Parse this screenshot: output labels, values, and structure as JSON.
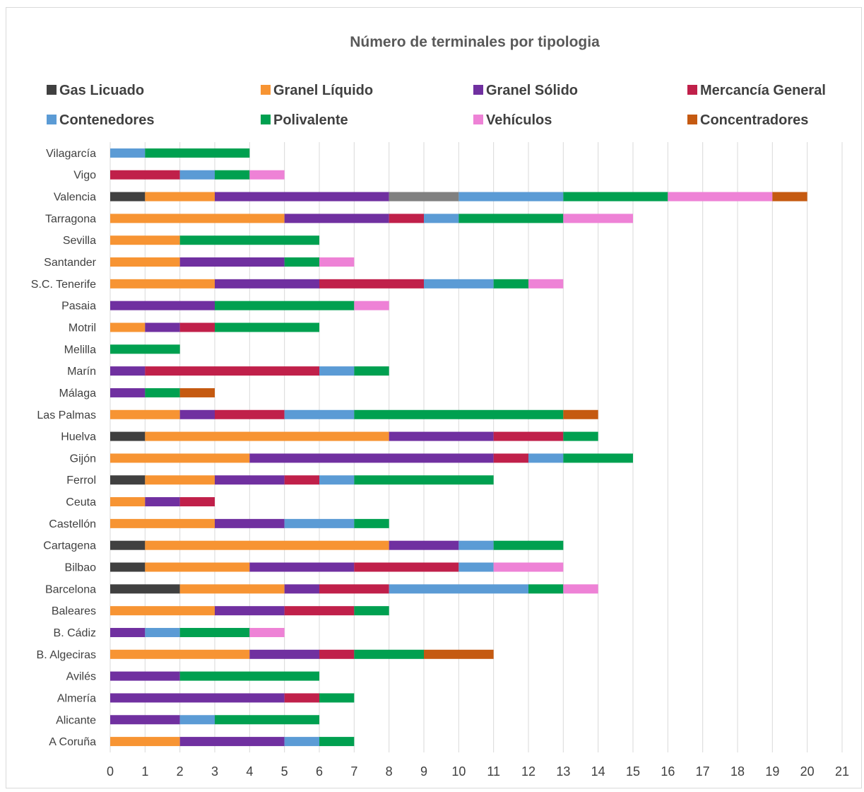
{
  "chart_data": {
    "type": "bar",
    "orientation": "horizontal",
    "stacked": true,
    "title": "Número de terminales por tipologia",
    "xlabel": "",
    "ylabel": "",
    "xlim": [
      0,
      21
    ],
    "x_ticks": [
      0,
      1,
      2,
      3,
      4,
      5,
      6,
      7,
      8,
      9,
      10,
      11,
      12,
      13,
      14,
      15,
      16,
      17,
      18,
      19,
      20,
      21
    ],
    "grid": "vertical",
    "legend_position": "top",
    "categories": [
      "Vilagarcía",
      "Vigo",
      "Valencia",
      "Tarragona",
      "Sevilla",
      "Santander",
      "S.C. Tenerife",
      "Pasaia",
      "Motril",
      "Melilla",
      "Marín",
      "Málaga",
      "Las Palmas",
      "Huelva",
      "Gijón",
      "Ferrol",
      "Ceuta",
      "Castellón",
      "Cartagena",
      "Bilbao",
      "Barcelona",
      "Baleares",
      "B. Cádiz",
      "B. Algeciras",
      "Avilés",
      "Almería",
      "Alicante",
      "A Coruña"
    ],
    "legend": [
      {
        "name": "Gas Licuado",
        "color": "#404040"
      },
      {
        "name": "Granel Líquido",
        "color": "#f79433"
      },
      {
        "name": "Granel Sólido",
        "color": "#7030a0"
      },
      {
        "name": "Mercancía General",
        "color": "#c0204a"
      },
      {
        "name": "Contenedores",
        "color": "#5b9bd5"
      },
      {
        "name": "Polivalente",
        "color": "#00a050"
      },
      {
        "name": "Vehículos",
        "color": "#ee82d6"
      },
      {
        "name": "Concentradores",
        "color": "#c55a11"
      }
    ],
    "unlabeled_series_color": "#808080",
    "series": [
      {
        "name": "Gas Licuado",
        "values": [
          0,
          0,
          1,
          0,
          0,
          0,
          0,
          0,
          0,
          0,
          0,
          0,
          0,
          1,
          0,
          1,
          0,
          0,
          1,
          1,
          2,
          0,
          0,
          0,
          0,
          0,
          0,
          0
        ]
      },
      {
        "name": "Granel Líquido",
        "values": [
          0,
          0,
          2,
          5,
          2,
          2,
          3,
          0,
          1,
          0,
          0,
          0,
          2,
          7,
          4,
          2,
          1,
          3,
          7,
          3,
          3,
          3,
          0,
          4,
          0,
          0,
          0,
          2
        ]
      },
      {
        "name": "Granel Sólido",
        "values": [
          0,
          0,
          5,
          3,
          0,
          3,
          3,
          3,
          1,
          0,
          1,
          1,
          1,
          3,
          7,
          2,
          1,
          2,
          2,
          3,
          1,
          2,
          1,
          2,
          2,
          5,
          2,
          3
        ]
      },
      {
        "name": "",
        "values": [
          0,
          0,
          2,
          0,
          0,
          0,
          0,
          0,
          0,
          0,
          0,
          0,
          0,
          0,
          0,
          0,
          0,
          0,
          0,
          0,
          0,
          0,
          0,
          0,
          0,
          0,
          0,
          0
        ]
      },
      {
        "name": "Mercancía General",
        "values": [
          0,
          2,
          0,
          1,
          0,
          0,
          3,
          0,
          1,
          0,
          5,
          0,
          2,
          2,
          1,
          1,
          1,
          0,
          0,
          3,
          2,
          2,
          0,
          1,
          0,
          1,
          0,
          0
        ]
      },
      {
        "name": "Contenedores",
        "values": [
          1,
          1,
          3,
          1,
          0,
          0,
          2,
          0,
          0,
          0,
          1,
          0,
          2,
          0,
          1,
          1,
          0,
          2,
          1,
          1,
          4,
          0,
          1,
          0,
          0,
          0,
          1,
          1
        ]
      },
      {
        "name": "Polivalente",
        "values": [
          3,
          1,
          3,
          3,
          4,
          1,
          1,
          4,
          3,
          2,
          1,
          1,
          6,
          1,
          2,
          4,
          0,
          1,
          2,
          0,
          1,
          1,
          2,
          2,
          4,
          1,
          3,
          1
        ]
      },
      {
        "name": "Vehículos",
        "values": [
          0,
          1,
          3,
          2,
          0,
          1,
          1,
          1,
          0,
          0,
          0,
          0,
          0,
          0,
          0,
          0,
          0,
          0,
          0,
          2,
          1,
          0,
          1,
          0,
          0,
          0,
          0,
          0
        ]
      },
      {
        "name": "Concentradores",
        "values": [
          0,
          0,
          1,
          0,
          0,
          0,
          0,
          0,
          0,
          0,
          0,
          1,
          1,
          0,
          0,
          0,
          0,
          0,
          0,
          0,
          0,
          0,
          0,
          2,
          0,
          0,
          0,
          0
        ]
      }
    ],
    "series_colors": [
      "#404040",
      "#f79433",
      "#7030a0",
      "#808080",
      "#c0204a",
      "#5b9bd5",
      "#00a050",
      "#ee82d6",
      "#c55a11"
    ]
  }
}
